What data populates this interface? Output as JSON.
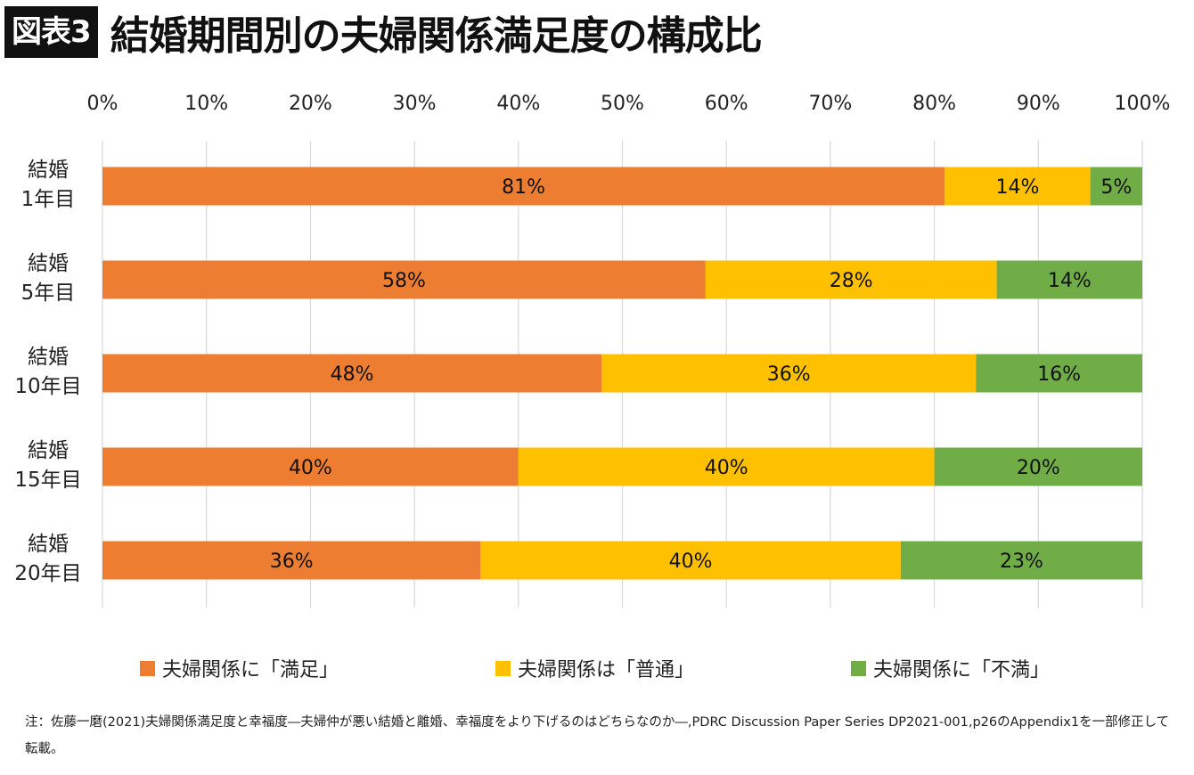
{
  "header": {
    "tag": "図表3",
    "title": "結婚期間別の夫婦関係満足度の構成比"
  },
  "chart_data": {
    "type": "bar",
    "orientation": "horizontal",
    "stacked": true,
    "xlim": [
      0,
      100
    ],
    "x_ticks": [
      "0%",
      "10%",
      "20%",
      "30%",
      "40%",
      "50%",
      "60%",
      "70%",
      "80%",
      "90%",
      "100%"
    ],
    "grid": true,
    "legend_position": "bottom",
    "categories": [
      [
        "結婚",
        "1年目"
      ],
      [
        "結婚",
        "5年目"
      ],
      [
        "結婚",
        "10年目"
      ],
      [
        "結婚",
        "15年目"
      ],
      [
        "結婚",
        "20年目"
      ]
    ],
    "series": [
      {
        "name": "夫婦関係に「満足」",
        "color": "#ED7D31",
        "values": [
          81,
          58,
          48,
          40,
          36
        ],
        "labels": [
          "81%",
          "58%",
          "48%",
          "40%",
          "36%"
        ]
      },
      {
        "name": "夫婦関係は「普通」",
        "color": "#FFC000",
        "values": [
          14,
          28,
          36,
          40,
          40
        ],
        "labels": [
          "14%",
          "28%",
          "36%",
          "40%",
          "40%"
        ]
      },
      {
        "name": "夫婦関係に「不満」",
        "color": "#70AD47",
        "values": [
          5,
          14,
          16,
          20,
          23
        ],
        "labels": [
          "5%",
          "14%",
          "16%",
          "20%",
          "23%"
        ]
      }
    ]
  },
  "note": "注：佐藤一磨(2021)夫婦関係満足度と幸福度―夫婦仲が悪い結婚と離婚、幸福度をより下げるのはどちらなのか―,PDRC Discussion Paper Series DP2021-001,p26のAppendix1を一部修正して転載。"
}
